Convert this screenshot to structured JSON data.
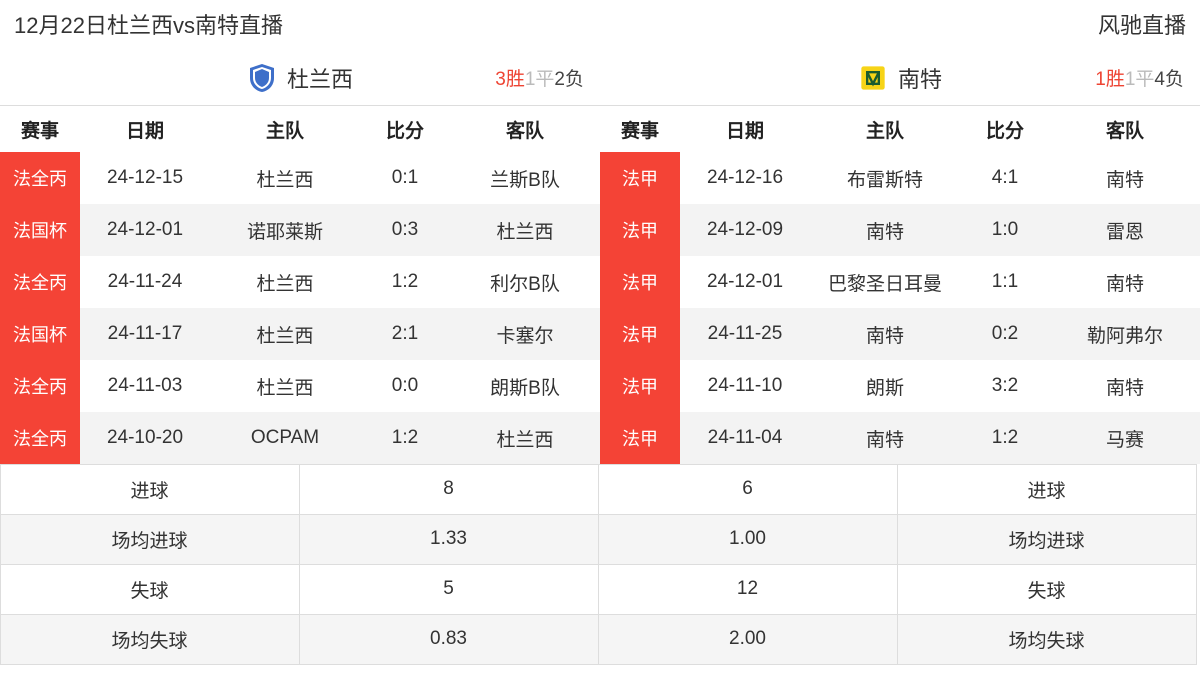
{
  "header": {
    "title_left": "12月22日杜兰西vs南特直播",
    "title_right": "风驰直播"
  },
  "columns": {
    "comp": "赛事",
    "date": "日期",
    "home": "主队",
    "score": "比分",
    "away": "客队"
  },
  "left": {
    "team_name": "杜兰西",
    "wdl": {
      "w": "3胜",
      "d": "1平",
      "l": "2负"
    },
    "logo_shield_fill": "#3e6fc9",
    "rows": [
      {
        "comp": "法全丙",
        "date": "24-12-15",
        "home": "杜兰西",
        "score": "0:1",
        "away": "兰斯B队"
      },
      {
        "comp": "法国杯",
        "date": "24-12-01",
        "home": "诺耶莱斯",
        "score": "0:3",
        "away": "杜兰西"
      },
      {
        "comp": "法全丙",
        "date": "24-11-24",
        "home": "杜兰西",
        "score": "1:2",
        "away": "利尔B队"
      },
      {
        "comp": "法国杯",
        "date": "24-11-17",
        "home": "杜兰西",
        "score": "2:1",
        "away": "卡塞尔"
      },
      {
        "comp": "法全丙",
        "date": "24-11-03",
        "home": "杜兰西",
        "score": "0:0",
        "away": "朗斯B队"
      },
      {
        "comp": "法全丙",
        "date": "24-10-20",
        "home": "OCPAM",
        "score": "1:2",
        "away": "杜兰西"
      }
    ]
  },
  "right": {
    "team_name": "南特",
    "wdl": {
      "w": "1胜",
      "d": "1平",
      "l": "4负"
    },
    "logo_square_fill": "#f7d417",
    "rows": [
      {
        "comp": "法甲",
        "date": "24-12-16",
        "home": "布雷斯特",
        "score": "4:1",
        "away": "南特"
      },
      {
        "comp": "法甲",
        "date": "24-12-09",
        "home": "南特",
        "score": "1:0",
        "away": "雷恩"
      },
      {
        "comp": "法甲",
        "date": "24-12-01",
        "home": "巴黎圣日耳曼",
        "score": "1:1",
        "away": "南特"
      },
      {
        "comp": "法甲",
        "date": "24-11-25",
        "home": "南特",
        "score": "0:2",
        "away": "勒阿弗尔"
      },
      {
        "comp": "法甲",
        "date": "24-11-10",
        "home": "朗斯",
        "score": "3:2",
        "away": "南特"
      },
      {
        "comp": "法甲",
        "date": "24-11-04",
        "home": "南特",
        "score": "1:2",
        "away": "马赛"
      }
    ]
  },
  "summary": {
    "labels": {
      "goals": "进球",
      "avg_goals": "场均进球",
      "conceded": "失球",
      "avg_conceded": "场均失球"
    },
    "left": {
      "goals": "8",
      "avg_goals": "1.33",
      "conceded": "5",
      "avg_conceded": "0.83"
    },
    "right": {
      "goals": "6",
      "avg_goals": "1.00",
      "conceded": "12",
      "avg_conceded": "2.00"
    }
  },
  "colors": {
    "comp_bg": "#f44336",
    "win": "#ee4433",
    "draw": "#bbbbbb",
    "loss": "#444444"
  }
}
